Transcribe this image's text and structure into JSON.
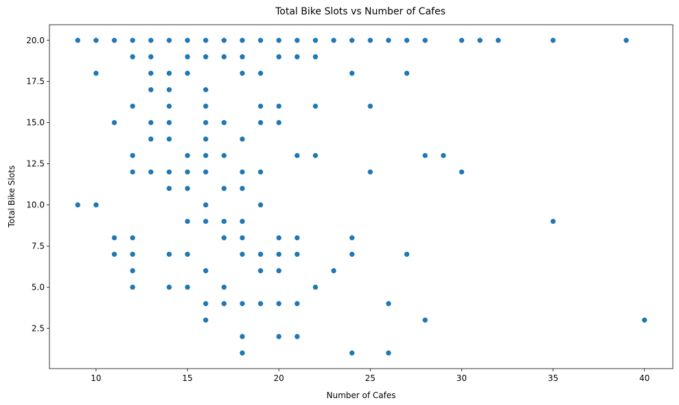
{
  "chart_data": {
    "type": "scatter",
    "title": "Total Bike Slots vs Number of Cafes",
    "xlabel": "Number of Cafes",
    "ylabel": "Total Bike Slots",
    "xlim": [
      7.45,
      41.55
    ],
    "ylim": [
      0.05,
      20.95
    ],
    "xticks": [
      10,
      15,
      20,
      25,
      30,
      35,
      40
    ],
    "xtick_labels": [
      "10",
      "15",
      "20",
      "25",
      "30",
      "35",
      "40"
    ],
    "yticks": [
      2.5,
      5.0,
      7.5,
      10.0,
      12.5,
      15.0,
      17.5,
      20.0
    ],
    "ytick_labels": [
      "2.5",
      "5.0",
      "7.5",
      "10.0",
      "12.5",
      "15.0",
      "17.5",
      "20.0"
    ],
    "grid": false,
    "legend": "none",
    "marker_color": "#1f77b4",
    "points": [
      [
        9,
        20
      ],
      [
        10,
        20
      ],
      [
        11,
        20
      ],
      [
        12,
        20
      ],
      [
        13,
        20
      ],
      [
        14,
        20
      ],
      [
        15,
        20
      ],
      [
        16,
        20
      ],
      [
        17,
        20
      ],
      [
        18,
        20
      ],
      [
        19,
        20
      ],
      [
        20,
        20
      ],
      [
        21,
        20
      ],
      [
        22,
        20
      ],
      [
        23,
        20
      ],
      [
        24,
        20
      ],
      [
        25,
        20
      ],
      [
        26,
        20
      ],
      [
        27,
        20
      ],
      [
        28,
        20
      ],
      [
        30,
        20
      ],
      [
        31,
        20
      ],
      [
        32,
        20
      ],
      [
        35,
        20
      ],
      [
        39,
        20
      ],
      [
        12,
        19
      ],
      [
        13,
        19
      ],
      [
        15,
        19
      ],
      [
        16,
        19
      ],
      [
        17,
        19
      ],
      [
        18,
        19
      ],
      [
        20,
        19
      ],
      [
        21,
        19
      ],
      [
        22,
        19
      ],
      [
        10,
        18
      ],
      [
        13,
        18
      ],
      [
        14,
        18
      ],
      [
        15,
        18
      ],
      [
        18,
        18
      ],
      [
        19,
        18
      ],
      [
        24,
        18
      ],
      [
        27,
        18
      ],
      [
        13,
        17
      ],
      [
        14,
        17
      ],
      [
        16,
        17
      ],
      [
        12,
        16
      ],
      [
        14,
        16
      ],
      [
        16,
        16
      ],
      [
        19,
        16
      ],
      [
        20,
        16
      ],
      [
        22,
        16
      ],
      [
        25,
        16
      ],
      [
        11,
        15
      ],
      [
        13,
        15
      ],
      [
        14,
        15
      ],
      [
        16,
        15
      ],
      [
        17,
        15
      ],
      [
        19,
        15
      ],
      [
        20,
        15
      ],
      [
        13,
        14
      ],
      [
        14,
        14
      ],
      [
        16,
        14
      ],
      [
        18,
        14
      ],
      [
        12,
        13
      ],
      [
        15,
        13
      ],
      [
        16,
        13
      ],
      [
        17,
        13
      ],
      [
        21,
        13
      ],
      [
        22,
        13
      ],
      [
        28,
        13
      ],
      [
        29,
        13
      ],
      [
        12,
        12
      ],
      [
        13,
        12
      ],
      [
        14,
        12
      ],
      [
        15,
        12
      ],
      [
        16,
        12
      ],
      [
        18,
        12
      ],
      [
        19,
        12
      ],
      [
        25,
        12
      ],
      [
        30,
        12
      ],
      [
        14,
        11
      ],
      [
        15,
        11
      ],
      [
        17,
        11
      ],
      [
        18,
        11
      ],
      [
        9,
        10
      ],
      [
        10,
        10
      ],
      [
        16,
        10
      ],
      [
        19,
        10
      ],
      [
        15,
        9
      ],
      [
        16,
        9
      ],
      [
        17,
        9
      ],
      [
        18,
        9
      ],
      [
        35,
        9
      ],
      [
        11,
        8
      ],
      [
        12,
        8
      ],
      [
        17,
        8
      ],
      [
        18,
        8
      ],
      [
        20,
        8
      ],
      [
        21,
        8
      ],
      [
        24,
        8
      ],
      [
        11,
        7
      ],
      [
        12,
        7
      ],
      [
        14,
        7
      ],
      [
        15,
        7
      ],
      [
        18,
        7
      ],
      [
        19,
        7
      ],
      [
        20,
        7
      ],
      [
        21,
        7
      ],
      [
        24,
        7
      ],
      [
        27,
        7
      ],
      [
        12,
        6
      ],
      [
        16,
        6
      ],
      [
        19,
        6
      ],
      [
        20,
        6
      ],
      [
        23,
        6
      ],
      [
        12,
        5
      ],
      [
        14,
        5
      ],
      [
        15,
        5
      ],
      [
        17,
        5
      ],
      [
        22,
        5
      ],
      [
        16,
        4
      ],
      [
        17,
        4
      ],
      [
        18,
        4
      ],
      [
        19,
        4
      ],
      [
        20,
        4
      ],
      [
        21,
        4
      ],
      [
        26,
        4
      ],
      [
        16,
        3
      ],
      [
        28,
        3
      ],
      [
        40,
        3
      ],
      [
        18,
        2
      ],
      [
        20,
        2
      ],
      [
        21,
        2
      ],
      [
        18,
        1
      ],
      [
        24,
        1
      ],
      [
        26,
        1
      ]
    ]
  }
}
